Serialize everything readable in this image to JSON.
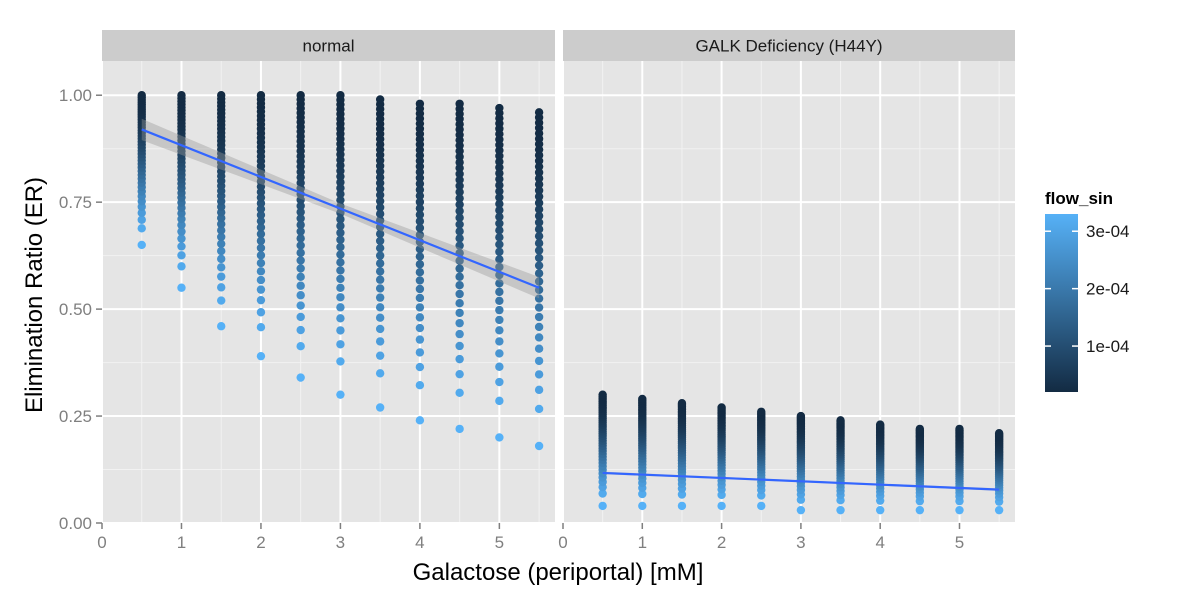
{
  "chart_data": {
    "type": "scatter",
    "xlabel": "Galactose (periportal) [mM]",
    "ylabel": "Elimination Ratio (ER)",
    "xlim": [
      0,
      5.7
    ],
    "ylim": [
      0,
      1.08
    ],
    "x_ticks": [
      0,
      1,
      2,
      3,
      4,
      5
    ],
    "x_tick_labels": [
      "0",
      "1",
      "2",
      "3",
      "4",
      "5"
    ],
    "y_ticks": [
      0,
      0.25,
      0.5,
      0.75,
      1.0
    ],
    "y_tick_labels": [
      "0.00",
      "0.25",
      "0.50",
      "0.75",
      "1.00"
    ],
    "grid": true,
    "legend": {
      "title": "flow_sin",
      "placement": "right",
      "color_low": "#132b43",
      "color_high": "#56b1f7",
      "range": [
        2e-05,
        0.00033
      ],
      "ticks": [
        0.0001,
        0.0002,
        0.0003
      ],
      "tick_labels": [
        "1e-04",
        "2e-04",
        "3e-04"
      ]
    },
    "colors": {
      "panel_bg": "#e5e5e5",
      "strip_bg": "#cccccc",
      "grid_major": "#ffffff",
      "grid_minor": "#f2f2f2",
      "fit_line": "#3366ff",
      "ci_band": "#999999"
    },
    "x_values": [
      0.5,
      1.0,
      1.5,
      2.0,
      2.5,
      3.0,
      3.5,
      4.0,
      4.5,
      5.0,
      5.5
    ],
    "panels": [
      {
        "name": "normal",
        "point_range_top": [
          1.0,
          1.0,
          1.0,
          1.0,
          1.0,
          1.0,
          0.99,
          0.98,
          0.98,
          0.97,
          0.96
        ],
        "point_range_bottom": [
          0.65,
          0.55,
          0.46,
          0.39,
          0.34,
          0.3,
          0.27,
          0.24,
          0.22,
          0.2,
          0.18
        ],
        "fit": {
          "x": [
            0.5,
            5.5
          ],
          "y": [
            0.92,
            0.55
          ]
        },
        "ci_halfwidth": [
          0.025,
          0.012,
          0.025
        ]
      },
      {
        "name": "GALK Deficiency (H44Y)",
        "point_range_top": [
          0.3,
          0.29,
          0.28,
          0.27,
          0.26,
          0.25,
          0.24,
          0.23,
          0.22,
          0.22,
          0.21
        ],
        "point_range_bottom": [
          0.04,
          0.04,
          0.04,
          0.04,
          0.04,
          0.03,
          0.03,
          0.03,
          0.03,
          0.03,
          0.03
        ],
        "fit": {
          "x": [
            0.5,
            5.5
          ],
          "y": [
            0.117,
            0.078
          ]
        },
        "ci_halfwidth": [
          0.003,
          0.002,
          0.003
        ]
      }
    ]
  }
}
